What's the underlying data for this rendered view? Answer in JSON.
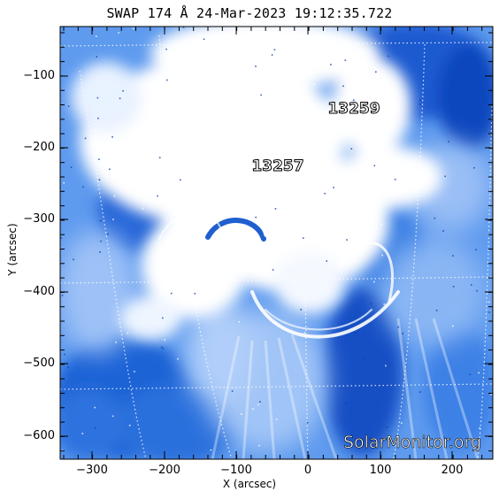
{
  "title": "SWAP 174 Å 24-Mar-2023 19:12:35.722",
  "axes": {
    "xlabel": "X (arcsec)",
    "ylabel": "Y (arcsec)",
    "x_ticks": [
      "−300",
      "−200",
      "−100",
      "0",
      "100",
      "200"
    ],
    "y_ticks": [
      "−100",
      "−200",
      "−300",
      "−400",
      "−500",
      "−600"
    ]
  },
  "regions": [
    {
      "label": "13259"
    },
    {
      "label": "13257"
    }
  ],
  "watermark": "SolarMonitor.org",
  "colors": {
    "deep_blue": "#0a4fc8",
    "mid_blue": "#4f8fea",
    "light_blue": "#b7d3fb",
    "white": "#ffffff"
  }
}
